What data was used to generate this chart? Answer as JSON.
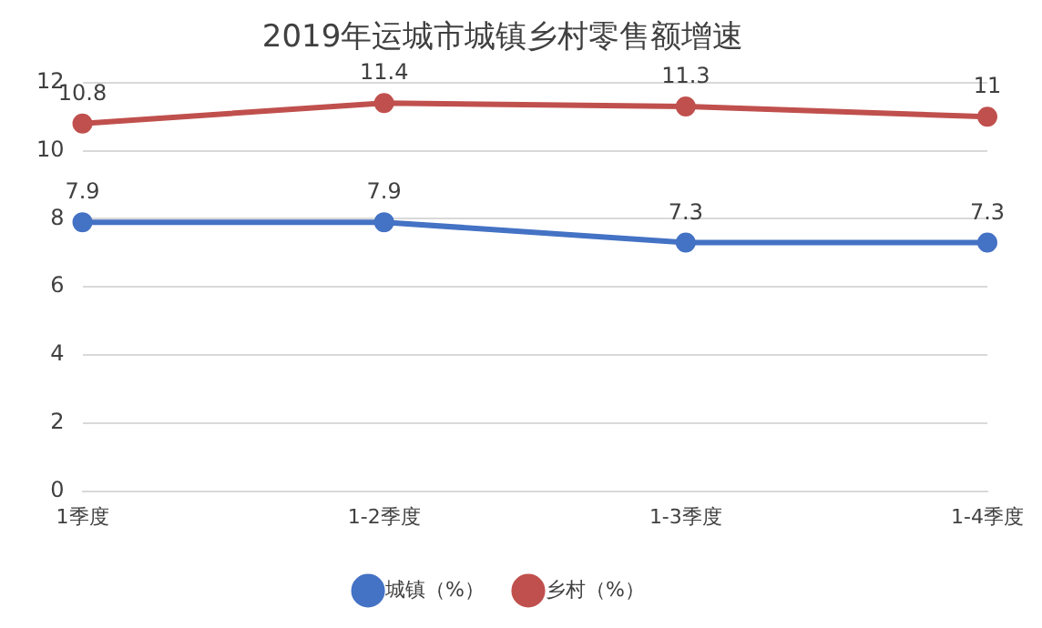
{
  "chart_data": {
    "type": "line",
    "title": "2019年运城市城镇乡村零售额增速",
    "categories": [
      "1季度",
      "1-2季度",
      "1-3季度",
      "1-4季度"
    ],
    "series": [
      {
        "name": "城镇（%）",
        "color": "#4472c4",
        "values": [
          7.9,
          7.9,
          7.3,
          7.3
        ]
      },
      {
        "name": "乡村（%）",
        "color": "#c0504d",
        "values": [
          10.8,
          11.4,
          11.3,
          11
        ]
      }
    ],
    "ylim": [
      0,
      12
    ],
    "yticks": [
      0,
      2,
      4,
      6,
      8,
      10,
      12
    ],
    "grid": "y",
    "legend": "bottom",
    "marker": "circle",
    "line_style": "solid",
    "data_labels": true
  }
}
